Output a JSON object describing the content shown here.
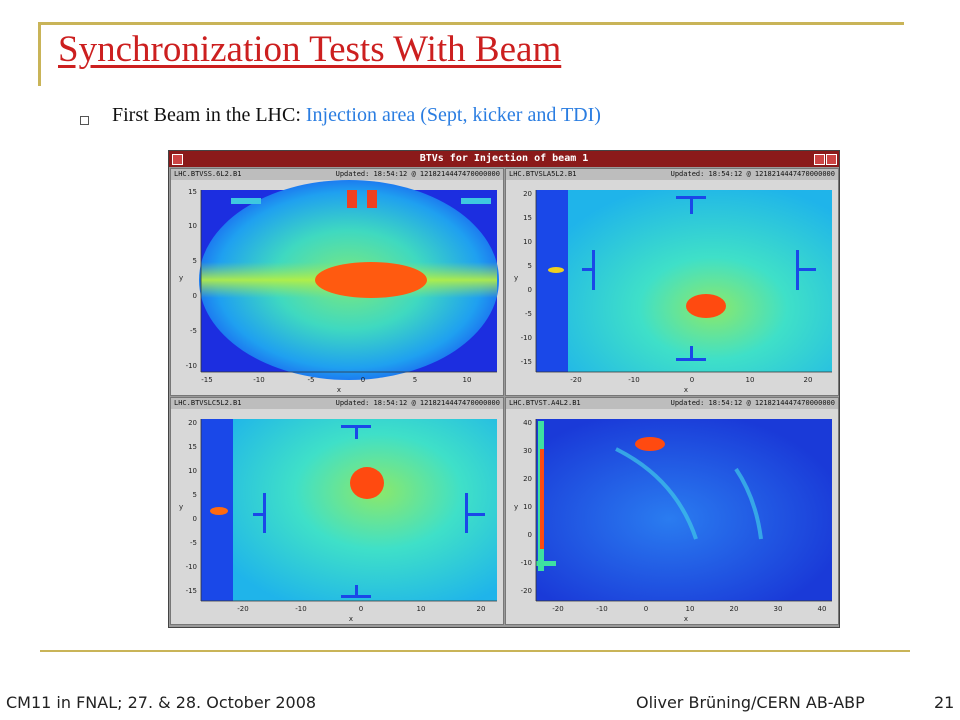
{
  "slide": {
    "title": "Synchronization Tests With Beam",
    "bullet_prefix": "First Beam in the LHC: ",
    "bullet_highlight": "Injection area (Sept, kicker and TDI)",
    "footer_left": "CM11 in FNAL; 27. & 28. October 2008",
    "footer_right": "Oliver Brüning/CERN AB-ABP",
    "page_number": "21"
  },
  "window": {
    "title": "BTVs for Injection of beam 1",
    "panels": [
      {
        "name": "LHC.BTVSS.6L2.B1",
        "updated": "Updated: 18:54:12 @ 1218214447470000000",
        "xticks": [
          "-15",
          "-10",
          "-5",
          "0",
          "5",
          "10"
        ],
        "yticks": [
          "15",
          "10",
          "5",
          "0",
          "-5",
          "-10"
        ],
        "xlabel": "x",
        "ylabel": "y"
      },
      {
        "name": "LHC.BTVSLA5L2.B1",
        "updated": "Updated: 18:54:12 @ 1218214447470000000",
        "xticks": [
          "-20",
          "-10",
          "0",
          "10",
          "20"
        ],
        "yticks": [
          "20",
          "15",
          "10",
          "5",
          "0",
          "-5",
          "-10",
          "-15"
        ],
        "xlabel": "x",
        "ylabel": "y"
      },
      {
        "name": "LHC.BTVSLC5L2.B1",
        "updated": "Updated: 18:54:12 @ 1218214447470000000",
        "xticks": [
          "-20",
          "-10",
          "0",
          "10",
          "20"
        ],
        "yticks": [
          "20",
          "15",
          "10",
          "5",
          "0",
          "-5",
          "-10",
          "-15"
        ],
        "xlabel": "x",
        "ylabel": "y"
      },
      {
        "name": "LHC.BTVST.A4L2.B1",
        "updated": "Updated: 18:54:12 @ 1218214447470000000",
        "xticks": [
          "-20",
          "-10",
          "0",
          "10",
          "20",
          "30",
          "40"
        ],
        "yticks": [
          "40",
          "30",
          "20",
          "10",
          "0",
          "-10",
          "-20"
        ],
        "xlabel": "x",
        "ylabel": "y"
      }
    ]
  }
}
